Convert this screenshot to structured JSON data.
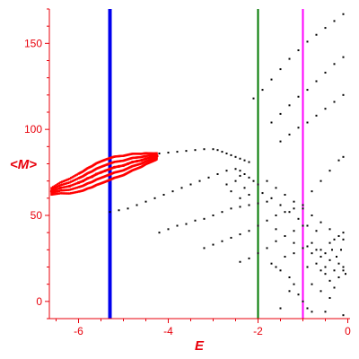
{
  "chart_data": {
    "type": "scatter",
    "title": "",
    "xlabel": "E",
    "ylabel": "<M>",
    "xlim": [
      -6.65,
      0.05
    ],
    "ylim": [
      -10,
      170
    ],
    "x_ticks": [
      -6,
      -4,
      -2,
      0
    ],
    "y_ticks": [
      0,
      50,
      100,
      150
    ],
    "x_tick_labels": [
      "-6",
      "-4",
      "-2",
      "0"
    ],
    "y_tick_labels": [
      "0",
      "50",
      "100",
      "150"
    ],
    "grid": false,
    "legend": "none",
    "axis_color": "#e8000b",
    "series": [
      {
        "color": "#ff0000",
        "style": "dense-band",
        "points": [
          [
            -6.6,
            64
          ],
          [
            -6.4,
            66
          ],
          [
            -6.2,
            67
          ],
          [
            -6.0,
            69
          ],
          [
            -5.9,
            70
          ],
          [
            -5.8,
            71.5
          ],
          [
            -5.7,
            72.5
          ],
          [
            -5.6,
            74
          ],
          [
            -5.5,
            75
          ],
          [
            -5.4,
            76
          ],
          [
            -5.3,
            77
          ],
          [
            -5.2,
            78
          ],
          [
            -5.1,
            78.5
          ],
          [
            -5.0,
            79
          ],
          [
            -4.9,
            80
          ],
          [
            -4.8,
            81
          ],
          [
            -4.7,
            81.5
          ],
          [
            -4.6,
            82
          ],
          [
            -4.5,
            83
          ],
          [
            -4.4,
            83.5
          ],
          [
            -4.3,
            84
          ],
          [
            -4.25,
            84.5
          ]
        ]
      },
      {
        "color": "#000000",
        "style": "dots",
        "points": [
          [
            -4.2,
            86
          ],
          [
            -4.0,
            86.5
          ],
          [
            -3.8,
            87
          ],
          [
            -3.6,
            87.5
          ],
          [
            -3.4,
            88
          ],
          [
            -3.2,
            88.5
          ],
          [
            -3.0,
            88.5
          ],
          [
            -2.9,
            88
          ],
          [
            -2.8,
            87
          ],
          [
            -2.7,
            86
          ],
          [
            -2.6,
            85
          ],
          [
            -2.5,
            84
          ],
          [
            -2.4,
            83
          ],
          [
            -2.3,
            82
          ],
          [
            -2.2,
            81
          ],
          [
            -5.3,
            52
          ],
          [
            -5.1,
            53
          ],
          [
            -4.9,
            54
          ],
          [
            -4.7,
            56
          ],
          [
            -4.5,
            58
          ],
          [
            -4.3,
            60
          ],
          [
            -4.1,
            62
          ],
          [
            -3.9,
            64
          ],
          [
            -3.7,
            66
          ],
          [
            -3.5,
            68
          ],
          [
            -3.3,
            70
          ],
          [
            -3.1,
            72
          ],
          [
            -2.9,
            74
          ],
          [
            -2.7,
            76
          ],
          [
            -2.5,
            77
          ],
          [
            -2.4,
            76
          ],
          [
            -2.3,
            74
          ],
          [
            -2.2,
            72
          ],
          [
            -2.1,
            70
          ],
          [
            -2.0,
            68
          ],
          [
            -4.2,
            40
          ],
          [
            -4.0,
            42
          ],
          [
            -3.8,
            44
          ],
          [
            -3.6,
            45
          ],
          [
            -3.4,
            47
          ],
          [
            -3.2,
            48
          ],
          [
            -3.0,
            50
          ],
          [
            -2.8,
            52
          ],
          [
            -2.6,
            54
          ],
          [
            -2.4,
            55
          ],
          [
            -2.2,
            56
          ],
          [
            -2.0,
            57
          ],
          [
            -1.8,
            58
          ],
          [
            -3.2,
            31
          ],
          [
            -3.0,
            33
          ],
          [
            -2.8,
            35
          ],
          [
            -2.6,
            37
          ],
          [
            -2.4,
            39
          ],
          [
            -2.2,
            41
          ],
          [
            -2.0,
            44
          ],
          [
            -1.8,
            47
          ],
          [
            -1.6,
            50
          ],
          [
            -1.4,
            52
          ],
          [
            -1.2,
            54
          ],
          [
            -1.0,
            56
          ],
          [
            -2.4,
            23
          ],
          [
            -2.2,
            25
          ],
          [
            -2.0,
            28
          ],
          [
            -1.8,
            31
          ],
          [
            -1.6,
            35
          ],
          [
            -1.4,
            38
          ],
          [
            -1.2,
            41
          ],
          [
            -1.0,
            44
          ],
          [
            -2.1,
            118
          ],
          [
            -1.9,
            123
          ],
          [
            -1.7,
            129
          ],
          [
            -1.5,
            135
          ],
          [
            -1.3,
            141
          ],
          [
            -1.1,
            146
          ],
          [
            -0.9,
            151
          ],
          [
            -0.7,
            155
          ],
          [
            -0.5,
            159
          ],
          [
            -0.3,
            163
          ],
          [
            -0.1,
            167
          ],
          [
            -1.7,
            104
          ],
          [
            -1.5,
            109
          ],
          [
            -1.3,
            114
          ],
          [
            -1.1,
            119
          ],
          [
            -0.9,
            123
          ],
          [
            -0.7,
            128
          ],
          [
            -0.5,
            133
          ],
          [
            -0.3,
            138
          ],
          [
            -0.1,
            142
          ],
          [
            -1.5,
            93
          ],
          [
            -1.3,
            97
          ],
          [
            -1.1,
            101
          ],
          [
            -0.9,
            104
          ],
          [
            -0.7,
            108
          ],
          [
            -0.5,
            112
          ],
          [
            -0.3,
            116
          ],
          [
            -0.1,
            120
          ],
          [
            -1.8,
            70
          ],
          [
            -1.6,
            66
          ],
          [
            -1.4,
            62
          ],
          [
            -1.2,
            58
          ],
          [
            -1.0,
            54
          ],
          [
            -0.8,
            50
          ],
          [
            -0.6,
            46
          ],
          [
            -0.4,
            42
          ],
          [
            -0.2,
            38
          ],
          [
            -0.1,
            36
          ],
          [
            -0.8,
            64
          ],
          [
            -0.6,
            70
          ],
          [
            -0.4,
            76
          ],
          [
            -0.2,
            82
          ],
          [
            -0.1,
            84
          ],
          [
            -0.6,
            30
          ],
          [
            -0.4,
            34
          ],
          [
            -0.3,
            36
          ],
          [
            -0.1,
            40
          ],
          [
            -1.9,
            63
          ],
          [
            -1.7,
            60
          ],
          [
            -1.5,
            56
          ],
          [
            -1.3,
            52
          ],
          [
            -1.1,
            48
          ],
          [
            -0.9,
            44
          ],
          [
            -0.7,
            41
          ],
          [
            -1.6,
            42
          ],
          [
            -1.4,
            38
          ],
          [
            -1.2,
            34
          ],
          [
            -1.0,
            31
          ],
          [
            -0.8,
            28
          ],
          [
            -0.6,
            26
          ],
          [
            -0.4,
            24
          ],
          [
            -0.2,
            22
          ],
          [
            -0.1,
            20
          ],
          [
            -1.7,
            22
          ],
          [
            -1.5,
            18
          ],
          [
            -1.3,
            14
          ],
          [
            -1.2,
            10
          ],
          [
            -1.1,
            4
          ],
          [
            -1.0,
            0
          ],
          [
            -0.9,
            -4
          ],
          [
            -0.8,
            -6
          ],
          [
            -0.6,
            18
          ],
          [
            -0.5,
            16
          ],
          [
            -0.4,
            12
          ],
          [
            -0.3,
            8
          ],
          [
            -0.2,
            14
          ],
          [
            -0.1,
            18
          ],
          [
            -0.05,
            16
          ],
          [
            -0.9,
            32
          ],
          [
            -0.8,
            34
          ],
          [
            -0.7,
            30
          ],
          [
            -0.5,
            28
          ],
          [
            -0.35,
            30
          ],
          [
            -0.25,
            26
          ],
          [
            -0.15,
            30
          ],
          [
            -1.4,
            26
          ],
          [
            -1.2,
            28
          ],
          [
            -0.9,
            20
          ],
          [
            -0.7,
            22
          ],
          [
            -0.5,
            20
          ],
          [
            -0.3,
            18
          ],
          [
            -1.6,
            20
          ],
          [
            -1.3,
            6
          ],
          [
            -0.8,
            10
          ],
          [
            -0.6,
            6
          ],
          [
            -0.4,
            2
          ],
          [
            -1.5,
            -4
          ],
          [
            -0.5,
            -6
          ],
          [
            -0.1,
            -8
          ],
          [
            -2.7,
            68
          ],
          [
            -2.6,
            64
          ],
          [
            -2.5,
            70
          ],
          [
            -2.4,
            60
          ],
          [
            -2.3,
            66
          ],
          [
            -2.2,
            62
          ],
          [
            -2.4,
            73
          ]
        ]
      }
    ],
    "vlines": [
      {
        "x": -5.3,
        "color": "#0000ee",
        "width": 4
      },
      {
        "x": -2.0,
        "color": "#007a00",
        "width": 2
      },
      {
        "x": -1.0,
        "color": "#ff00ff",
        "width": 2
      }
    ]
  }
}
